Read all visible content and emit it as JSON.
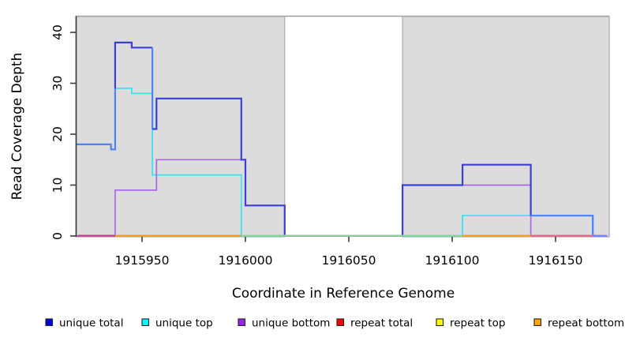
{
  "figure": {
    "x_axis": {
      "label": "Coordinate in Reference Genome",
      "ticks": [
        1915950,
        1916000,
        1916050,
        1916100,
        1916150
      ],
      "tick_labels": [
        "1915950",
        "1916000",
        "1916050",
        "1916100",
        "1916150"
      ],
      "range": [
        1915918,
        1916176
      ]
    },
    "y_axis": {
      "label": "Read Coverage Depth",
      "ticks": [
        0,
        10,
        20,
        30,
        40
      ],
      "tick_labels": [
        "0",
        "10",
        "20",
        "30",
        "40"
      ],
      "range": [
        0,
        43
      ]
    },
    "legend": [
      {
        "label": "unique total",
        "color": "#0000e6"
      },
      {
        "label": "unique top",
        "color": "#00ffff"
      },
      {
        "label": "unique bottom",
        "color": "#a020f0"
      },
      {
        "label": "repeat total",
        "color": "#ff0000"
      },
      {
        "label": "repeat top",
        "color": "#ffff00"
      },
      {
        "label": "repeat bottom",
        "color": "#ffa500"
      }
    ]
  },
  "chart_data": {
    "type": "line",
    "subtype": "step-coverage",
    "title": "",
    "xlabel": "Coordinate in Reference Genome",
    "ylabel": "Read Coverage Depth",
    "xlim": [
      1915918,
      1916176
    ],
    "ylim": [
      0,
      43
    ],
    "grid": false,
    "legend_position": "bottom",
    "shaded_regions": [
      {
        "from": 1915918,
        "to": 1916019,
        "color": "#dcdcdc"
      },
      {
        "from": 1916076,
        "to": 1916176,
        "color": "#dcdcdc"
      }
    ],
    "series": [
      {
        "name": "unique total",
        "color": "#0000e6",
        "steps": [
          [
            1915918,
            18
          ],
          [
            1915935,
            17
          ],
          [
            1915937,
            38
          ],
          [
            1915945,
            37
          ],
          [
            1915955,
            21
          ],
          [
            1915957,
            27
          ],
          [
            1915998,
            15
          ],
          [
            1916000,
            6
          ],
          [
            1916019,
            0
          ],
          [
            1916076,
            10
          ],
          [
            1916105,
            14
          ],
          [
            1916138,
            4
          ],
          [
            1916168,
            0
          ],
          [
            1916175,
            0
          ]
        ]
      },
      {
        "name": "unique top",
        "color": "#00ffff",
        "steps": [
          [
            1915918,
            18
          ],
          [
            1915935,
            17
          ],
          [
            1915937,
            29
          ],
          [
            1915945,
            28
          ],
          [
            1915955,
            12
          ],
          [
            1915998,
            0
          ],
          [
            1916105,
            4
          ],
          [
            1916168,
            0
          ],
          [
            1916175,
            0
          ]
        ]
      },
      {
        "name": "unique bottom",
        "color": "#a020f0",
        "steps": [
          [
            1915918,
            0
          ],
          [
            1915937,
            9
          ],
          [
            1915957,
            15
          ],
          [
            1916000,
            6
          ],
          [
            1916019,
            0
          ],
          [
            1916076,
            10
          ],
          [
            1916138,
            0
          ],
          [
            1916175,
            0
          ]
        ]
      },
      {
        "name": "repeat total",
        "color": "#ff0000",
        "steps": [
          [
            1915918,
            0
          ],
          [
            1916175,
            0
          ]
        ]
      },
      {
        "name": "repeat top",
        "color": "#ffff00",
        "steps": [
          [
            1915918,
            0
          ],
          [
            1916175,
            0
          ]
        ]
      },
      {
        "name": "repeat bottom",
        "color": "#ffa500",
        "steps": [
          [
            1915918,
            0
          ],
          [
            1916175,
            0
          ]
        ]
      }
    ]
  },
  "render": {
    "shade_fill": "#dcdcdc",
    "shade_stroke": "#ababab",
    "top_border_color": "#9c9c9c",
    "axis_color": "#3c3c3c",
    "lines": [
      {
        "name": "unique-top-line",
        "color": "#35e3ee",
        "width": 1.7,
        "points": [
          [
            1915918,
            18
          ],
          [
            1915935,
            18
          ],
          [
            1915935,
            17
          ],
          [
            1915937,
            17
          ],
          [
            1915937,
            29
          ],
          [
            1915945,
            29
          ],
          [
            1915945,
            28
          ],
          [
            1915955,
            28
          ],
          [
            1915955,
            12
          ],
          [
            1915998,
            12
          ],
          [
            1915998,
            0
          ],
          [
            1916105,
            0
          ],
          [
            1916105,
            4
          ],
          [
            1916168,
            4
          ],
          [
            1916168,
            0
          ],
          [
            1916175,
            0
          ]
        ]
      },
      {
        "name": "unique-bottom-line",
        "color": "#ab68e3",
        "width": 1.7,
        "points": [
          [
            1915918,
            0
          ],
          [
            1915937,
            0
          ],
          [
            1915937,
            9
          ],
          [
            1915957,
            9
          ],
          [
            1915957,
            15
          ],
          [
            1916000,
            15
          ],
          [
            1916000,
            6
          ],
          [
            1916019,
            6
          ],
          [
            1916019,
            0
          ],
          [
            1916076,
            0
          ],
          [
            1916076,
            10
          ],
          [
            1916138,
            10
          ],
          [
            1916138,
            0
          ],
          [
            1916175,
            0
          ]
        ]
      },
      {
        "name": "unique-total-line-overlap-left",
        "color": "#4e82f6",
        "width": 2.2,
        "points": [
          [
            1915918,
            18
          ],
          [
            1915935,
            18
          ],
          [
            1915935,
            17
          ],
          [
            1915937,
            17
          ],
          [
            1915937,
            29
          ]
        ]
      },
      {
        "name": "unique-total-line-peak",
        "color": "#3b3fd8",
        "width": 2.2,
        "points": [
          [
            1915937,
            29
          ],
          [
            1915937,
            38
          ],
          [
            1915945,
            38
          ],
          [
            1915945,
            37
          ],
          [
            1915955,
            37
          ]
        ]
      },
      {
        "name": "unique-total-line-drop",
        "color": "#4e82f6",
        "width": 2.2,
        "points": [
          [
            1915955,
            37
          ],
          [
            1915955,
            21
          ]
        ]
      },
      {
        "name": "unique-total-line-mid",
        "color": "#3b3fd8",
        "width": 2.2,
        "points": [
          [
            1915955,
            21
          ],
          [
            1915957,
            21
          ],
          [
            1915957,
            27
          ],
          [
            1915998,
            27
          ],
          [
            1915998,
            15
          ],
          [
            1916000,
            15
          ],
          [
            1916000,
            6
          ],
          [
            1916019,
            6
          ],
          [
            1916019,
            0
          ]
        ]
      },
      {
        "name": "unique-total-line-right",
        "color": "#3b3fd8",
        "width": 2.2,
        "points": [
          [
            1916076,
            0
          ],
          [
            1916076,
            10
          ],
          [
            1916105,
            10
          ],
          [
            1916105,
            14
          ],
          [
            1916138,
            14
          ],
          [
            1916138,
            4
          ]
        ]
      },
      {
        "name": "unique-total-line-overlap-right",
        "color": "#4e82f6",
        "width": 2.2,
        "points": [
          [
            1916138,
            4
          ],
          [
            1916168,
            4
          ],
          [
            1916168,
            0
          ],
          [
            1916175,
            0
          ]
        ]
      }
    ],
    "zero_segments": [
      {
        "from": 1915919,
        "to": 1915937,
        "color": "#c8407e"
      },
      {
        "from": 1915937,
        "to": 1915998,
        "color": "#ff9c10"
      },
      {
        "from": 1915999,
        "to": 1916105,
        "color": "#8fd48f"
      },
      {
        "from": 1916105,
        "to": 1916138,
        "color": "#ff9c10"
      },
      {
        "from": 1916138,
        "to": 1916168,
        "color": "#e8687e"
      },
      {
        "from": 1916168,
        "to": 1916175,
        "color": "#8585fb"
      }
    ]
  }
}
